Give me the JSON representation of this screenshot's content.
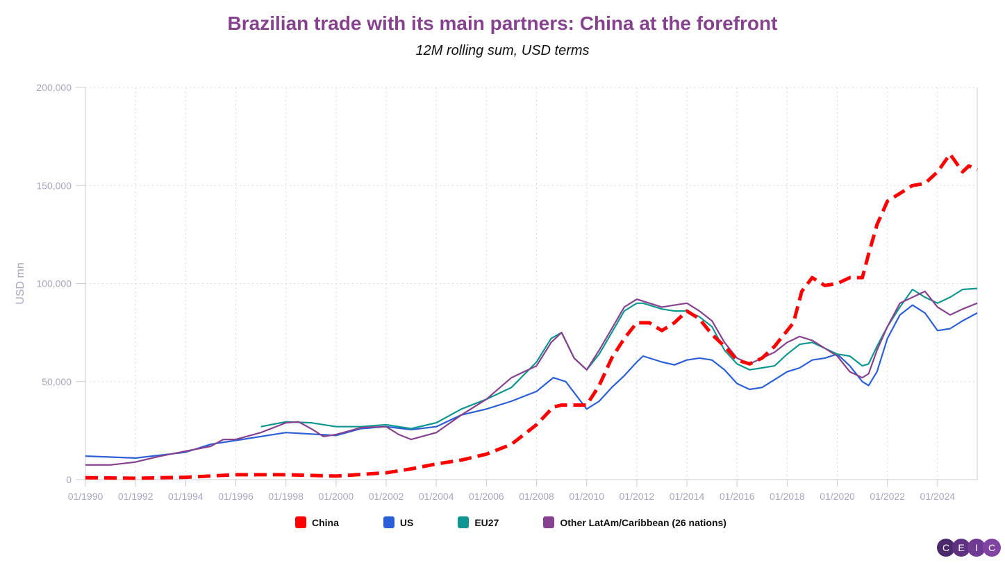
{
  "chart_data": {
    "type": "line",
    "title": "Brazilian trade with its main partners: China at the forefront",
    "subtitle": "12M rolling sum, USD terms",
    "ylabel": "USD mn",
    "xlabel": "",
    "ylim": [
      0,
      200000
    ],
    "xlim": [
      "1990-01",
      "2025-08"
    ],
    "yticks": [
      "0",
      "50,000",
      "100,000",
      "150,000",
      "200,000"
    ],
    "xticks": [
      "01/1990",
      "01/1992",
      "01/1994",
      "01/1996",
      "01/1998",
      "01/2000",
      "01/2002",
      "01/2004",
      "01/2006",
      "01/2008",
      "01/2010",
      "01/2012",
      "01/2014",
      "01/2016",
      "01/2018",
      "01/2020",
      "01/2022",
      "01/2024"
    ],
    "grid": true,
    "legend_position": "bottom",
    "series": [
      {
        "name": "China",
        "color": "#ff0000",
        "dashed": true,
        "points": [
          [
            "1990-01",
            1000
          ],
          [
            "1992-01",
            700
          ],
          [
            "1994-01",
            1200
          ],
          [
            "1996-01",
            2500
          ],
          [
            "1998-01",
            2500
          ],
          [
            "2000-01",
            1800
          ],
          [
            "2002-01",
            3500
          ],
          [
            "2003-01",
            5500
          ],
          [
            "2004-01",
            8000
          ],
          [
            "2005-01",
            10000
          ],
          [
            "2006-01",
            13000
          ],
          [
            "2007-01",
            18000
          ],
          [
            "2008-01",
            28000
          ],
          [
            "2008-09",
            37000
          ],
          [
            "2009-01",
            38000
          ],
          [
            "2009-07",
            38000
          ],
          [
            "2010-01",
            38000
          ],
          [
            "2010-07",
            48000
          ],
          [
            "2011-01",
            62000
          ],
          [
            "2011-07",
            72000
          ],
          [
            "2012-01",
            80000
          ],
          [
            "2012-07",
            80000
          ],
          [
            "2013-01",
            76000
          ],
          [
            "2013-07",
            80000
          ],
          [
            "2014-01",
            86000
          ],
          [
            "2014-07",
            82000
          ],
          [
            "2015-01",
            74000
          ],
          [
            "2015-07",
            68000
          ],
          [
            "2016-01",
            61000
          ],
          [
            "2016-07",
            59000
          ],
          [
            "2017-01",
            62000
          ],
          [
            "2017-07",
            68000
          ],
          [
            "2018-01",
            76000
          ],
          [
            "2018-04",
            80000
          ],
          [
            "2018-08",
            96000
          ],
          [
            "2019-01",
            103000
          ],
          [
            "2019-07",
            99000
          ],
          [
            "2020-01",
            100000
          ],
          [
            "2020-07",
            103000
          ],
          [
            "2021-01",
            103000
          ],
          [
            "2021-04",
            115000
          ],
          [
            "2021-08",
            130000
          ],
          [
            "2022-01",
            142000
          ],
          [
            "2022-07",
            146000
          ],
          [
            "2023-01",
            150000
          ],
          [
            "2023-07",
            151000
          ],
          [
            "2024-01",
            157000
          ],
          [
            "2024-07",
            166000
          ],
          [
            "2025-01",
            157000
          ],
          [
            "2025-04",
            160000
          ],
          [
            "2025-08",
            158000
          ]
        ]
      },
      {
        "name": "US",
        "color": "#2b5fd6",
        "dashed": false,
        "points": [
          [
            "1990-01",
            12000
          ],
          [
            "1992-01",
            11000
          ],
          [
            "1994-01",
            14000
          ],
          [
            "1995-01",
            18000
          ],
          [
            "1996-01",
            20000
          ],
          [
            "1998-01",
            24000
          ],
          [
            "2000-01",
            22500
          ],
          [
            "2001-01",
            26000
          ],
          [
            "2002-01",
            27000
          ],
          [
            "2003-01",
            25500
          ],
          [
            "2004-01",
            27000
          ],
          [
            "2005-01",
            33000
          ],
          [
            "2006-01",
            36000
          ],
          [
            "2007-01",
            40000
          ],
          [
            "2008-01",
            45000
          ],
          [
            "2008-09",
            52000
          ],
          [
            "2009-03",
            50000
          ],
          [
            "2010-01",
            36000
          ],
          [
            "2010-07",
            40000
          ],
          [
            "2011-01",
            47000
          ],
          [
            "2011-07",
            53000
          ],
          [
            "2012-01",
            60000
          ],
          [
            "2012-04",
            63000
          ],
          [
            "2013-01",
            60000
          ],
          [
            "2013-07",
            58500
          ],
          [
            "2014-01",
            61000
          ],
          [
            "2014-07",
            62000
          ],
          [
            "2015-01",
            61000
          ],
          [
            "2015-07",
            56000
          ],
          [
            "2016-01",
            49000
          ],
          [
            "2016-07",
            46000
          ],
          [
            "2017-01",
            47000
          ],
          [
            "2017-07",
            51000
          ],
          [
            "2018-01",
            55000
          ],
          [
            "2018-07",
            57000
          ],
          [
            "2019-01",
            61000
          ],
          [
            "2019-07",
            62000
          ],
          [
            "2020-01",
            64000
          ],
          [
            "2020-07",
            58000
          ],
          [
            "2021-01",
            50000
          ],
          [
            "2021-04",
            48000
          ],
          [
            "2021-08",
            55000
          ],
          [
            "2022-01",
            72000
          ],
          [
            "2022-07",
            84000
          ],
          [
            "2023-01",
            89000
          ],
          [
            "2023-07",
            85000
          ],
          [
            "2024-01",
            76000
          ],
          [
            "2024-07",
            77000
          ],
          [
            "2025-01",
            81000
          ],
          [
            "2025-08",
            85000
          ]
        ]
      },
      {
        "name": "EU27",
        "color": "#0f9690",
        "dashed": false,
        "points": [
          [
            "1997-01",
            27000
          ],
          [
            "1998-01",
            29500
          ],
          [
            "1999-01",
            29000
          ],
          [
            "2000-01",
            27000
          ],
          [
            "2001-01",
            27000
          ],
          [
            "2002-01",
            28000
          ],
          [
            "2003-01",
            26000
          ],
          [
            "2004-01",
            29000
          ],
          [
            "2005-01",
            36000
          ],
          [
            "2006-01",
            41000
          ],
          [
            "2007-01",
            47000
          ],
          [
            "2008-01",
            60000
          ],
          [
            "2008-08",
            72000
          ],
          [
            "2009-01",
            75000
          ],
          [
            "2009-07",
            62000
          ],
          [
            "2010-01",
            56000
          ],
          [
            "2010-07",
            64000
          ],
          [
            "2011-01",
            75000
          ],
          [
            "2011-07",
            86000
          ],
          [
            "2012-01",
            90000
          ],
          [
            "2012-04",
            90000
          ],
          [
            "2013-01",
            87000
          ],
          [
            "2013-07",
            86000
          ],
          [
            "2014-01",
            86000
          ],
          [
            "2014-07",
            83000
          ],
          [
            "2015-01",
            78000
          ],
          [
            "2015-07",
            66000
          ],
          [
            "2016-01",
            59000
          ],
          [
            "2016-07",
            56000
          ],
          [
            "2017-01",
            57000
          ],
          [
            "2017-07",
            58000
          ],
          [
            "2018-01",
            64000
          ],
          [
            "2018-07",
            69000
          ],
          [
            "2019-01",
            70000
          ],
          [
            "2019-07",
            67000
          ],
          [
            "2020-01",
            64000
          ],
          [
            "2020-07",
            63000
          ],
          [
            "2021-01",
            58000
          ],
          [
            "2021-04",
            59000
          ],
          [
            "2021-08",
            68000
          ],
          [
            "2022-01",
            78000
          ],
          [
            "2022-07",
            88000
          ],
          [
            "2023-01",
            97000
          ],
          [
            "2023-07",
            93000
          ],
          [
            "2024-01",
            90000
          ],
          [
            "2024-07",
            93000
          ],
          [
            "2025-01",
            97000
          ],
          [
            "2025-08",
            97500
          ]
        ]
      },
      {
        "name": "Other LatAm/Caribbean (26 nations)",
        "color": "#86428f",
        "dashed": false,
        "points": [
          [
            "1990-01",
            7500
          ],
          [
            "1991-01",
            7500
          ],
          [
            "1992-01",
            9000
          ],
          [
            "1993-01",
            12000
          ],
          [
            "1994-01",
            14500
          ],
          [
            "1995-01",
            17000
          ],
          [
            "1995-07",
            20500
          ],
          [
            "1996-01",
            20500
          ],
          [
            "1997-01",
            24000
          ],
          [
            "1998-01",
            29000
          ],
          [
            "1998-07",
            29500
          ],
          [
            "1999-01",
            26000
          ],
          [
            "1999-07",
            22000
          ],
          [
            "2000-01",
            23000
          ],
          [
            "2001-01",
            26500
          ],
          [
            "2002-01",
            27000
          ],
          [
            "2002-07",
            23000
          ],
          [
            "2003-01",
            20500
          ],
          [
            "2004-01",
            24000
          ],
          [
            "2005-01",
            33000
          ],
          [
            "2006-01",
            41000
          ],
          [
            "2007-01",
            52000
          ],
          [
            "2008-01",
            58000
          ],
          [
            "2008-08",
            70000
          ],
          [
            "2009-01",
            75000
          ],
          [
            "2009-07",
            62000
          ],
          [
            "2010-01",
            56000
          ],
          [
            "2010-07",
            66000
          ],
          [
            "2011-01",
            77000
          ],
          [
            "2011-07",
            88000
          ],
          [
            "2012-01",
            92000
          ],
          [
            "2012-04",
            91000
          ],
          [
            "2013-01",
            88000
          ],
          [
            "2013-07",
            89000
          ],
          [
            "2014-01",
            90000
          ],
          [
            "2014-07",
            86000
          ],
          [
            "2015-01",
            81000
          ],
          [
            "2015-07",
            70000
          ],
          [
            "2016-01",
            62000
          ],
          [
            "2016-07",
            59000
          ],
          [
            "2017-01",
            62000
          ],
          [
            "2017-07",
            65000
          ],
          [
            "2018-01",
            70000
          ],
          [
            "2018-07",
            73000
          ],
          [
            "2019-01",
            71000
          ],
          [
            "2019-07",
            67000
          ],
          [
            "2020-01",
            63000
          ],
          [
            "2020-07",
            55000
          ],
          [
            "2021-01",
            52000
          ],
          [
            "2021-04",
            54000
          ],
          [
            "2021-08",
            66000
          ],
          [
            "2022-01",
            78000
          ],
          [
            "2022-07",
            90000
          ],
          [
            "2023-01",
            93000
          ],
          [
            "2023-07",
            96000
          ],
          [
            "2024-01",
            88000
          ],
          [
            "2024-07",
            84000
          ],
          [
            "2025-01",
            87000
          ],
          [
            "2025-08",
            90000
          ]
        ]
      }
    ]
  },
  "logo": {
    "letters": [
      "C",
      "E",
      "I",
      "C"
    ],
    "colors": [
      "#4b2a6b",
      "#5e3280",
      "#6f3a92",
      "#8144a3"
    ]
  }
}
